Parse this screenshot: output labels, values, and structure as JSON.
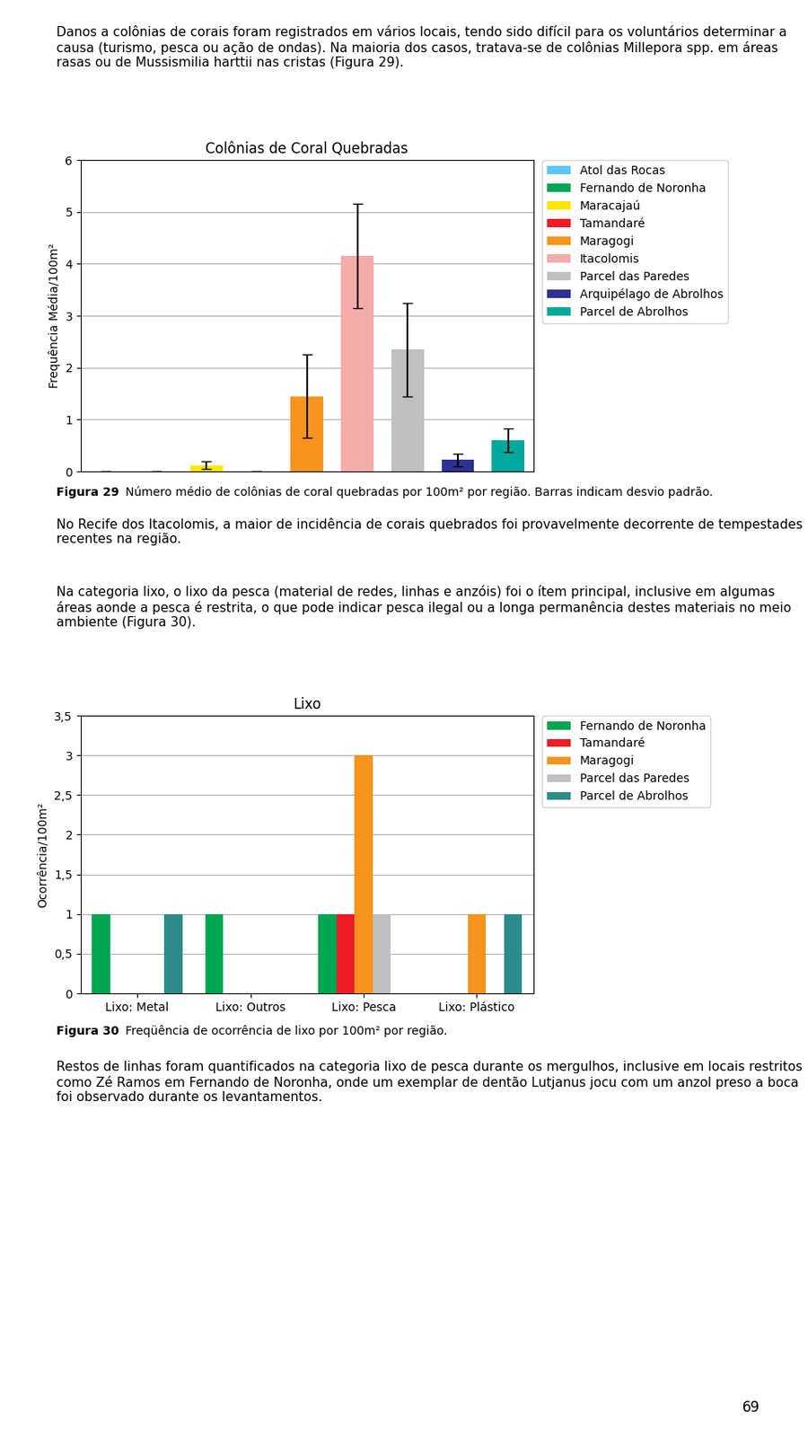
{
  "chart_data": [
    {
      "type": "bar",
      "title": "Colônias de Coral Quebradas",
      "ylabel": "Frequência Média/100m²",
      "categories": [
        "Atol das Rocas",
        "Fernando de Noronha",
        "Maracajaú",
        "Tamandaré",
        "Maragogi",
        "Itacolomis",
        "Parcel das Paredes",
        "Arquipélago de Abrolhos",
        "Parcel de Abrolhos"
      ],
      "values": [
        0,
        0,
        0.12,
        0,
        1.45,
        4.15,
        2.35,
        0.22,
        0.6
      ],
      "errors": [
        0,
        0,
        0.07,
        0,
        0.8,
        1.0,
        0.9,
        0.12,
        0.22
      ],
      "colors": [
        "#5BC8F5",
        "#00A651",
        "#FFE600",
        "#EE1C25",
        "#F7941D",
        "#F4ACAB",
        "#C0C0C0",
        "#2E3192",
        "#00A99D"
      ],
      "ylim": [
        0,
        6
      ],
      "yticks": [
        0,
        1,
        2,
        3,
        4,
        5,
        6
      ],
      "grid": true,
      "legend": "upper left",
      "tick_labels": "y",
      "annotations": [
        "Figura 29",
        "Número médio de colônias de coral quebradas por 100m² por região. Barras indicam desvio padrão."
      ]
    },
    {
      "type": "bar",
      "title": "Lixo",
      "ylabel": "Ocorrência/100m²",
      "categories": [
        "Lixo: Metal",
        "Lixo: Outros",
        "Lixo: Pesca",
        "Lixo: Plástico"
      ],
      "series": [
        {
          "name": "Fernando de Noronha",
          "color": "#00A651",
          "values": [
            1.0,
            1.0,
            1.0,
            0.0
          ]
        },
        {
          "name": "Tamandaré",
          "color": "#EE1C25",
          "values": [
            0.0,
            0.0,
            1.0,
            0.0
          ]
        },
        {
          "name": "Maragogi",
          "color": "#F7941D",
          "values": [
            0.0,
            0.0,
            3.0,
            1.0
          ]
        },
        {
          "name": "Parcel das Paredes",
          "color": "#C0C0C0",
          "values": [
            0.0,
            0.0,
            1.0,
            0.0
          ]
        },
        {
          "name": "Parcel de Abrolhos",
          "color": "#2E8B8B",
          "values": [
            1.0,
            0.0,
            0.0,
            1.0
          ]
        }
      ],
      "ylim": [
        0,
        3.5
      ],
      "yticks": [
        0,
        {
          "value": 0.5,
          "label": "0,5"
        },
        1,
        {
          "value": 1.5,
          "label": "1,5"
        },
        2,
        {
          "value": 2.5,
          "label": "2,5"
        },
        3,
        {
          "value": 3.5,
          "label": "3,5"
        }
      ],
      "grid": true,
      "legend": "upper left",
      "annotations": [
        "Figura 30",
        "Freqüência de ocorrência de lixo por 100m² por região."
      ]
    }
  ],
  "paragraphs": [
    "Danos a colônias de corais foram registrados em vários locais, tendo sido difícil para os voluntários determinar a causa (turismo, pesca ou ação de ondas). Na maioria dos casos, tratava-se de colônias Millepora spp. em áreas rasas ou de Mussismilia harttii nas cristas (Figura 29).",
    "No Recife dos Itacolomis, a maior de incidência de corais quebrados foi provavelmente decorrente de tempestades recentes na região.",
    "Na categoria lixo, o lixo da pesca (material de redes, linhas e anzóis) foi o ítem principal, inclusive em algumas áreas aonde a pesca é restrita, o que pode indicar pesca ilegal ou a longa permanência destes materiais no meio ambiente (Figura 30).",
    "Restos de linhas foram quantificados na categoria lixo de pesca durante os mergulhos, inclusive em locais restritos como Zé Ramos em Fernando de Noronha, onde um exemplar de dentão Lutjanus jocu com um anzol preso a boca foi observado durante os levantamentos."
  ],
  "page_number": 69
}
